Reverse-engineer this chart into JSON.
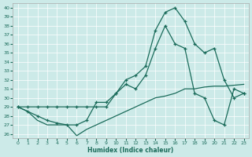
{
  "bg_color": "#cceae8",
  "grid_color": "#b0d8d5",
  "line_color": "#1a6b5a",
  "xlabel": "Humidex (Indice chaleur)",
  "xlim": [
    -0.5,
    23.5
  ],
  "ylim": [
    25.5,
    40.5
  ],
  "yticks": [
    26,
    27,
    28,
    29,
    30,
    31,
    32,
    33,
    34,
    35,
    36,
    37,
    38,
    39,
    40
  ],
  "xticks": [
    0,
    1,
    2,
    3,
    4,
    5,
    6,
    7,
    8,
    9,
    10,
    11,
    12,
    13,
    14,
    15,
    16,
    17,
    18,
    19,
    20,
    21,
    22,
    23
  ],
  "line_peak_x": [
    0,
    1,
    2,
    3,
    4,
    5,
    6,
    7,
    8,
    9,
    10,
    11,
    12,
    13,
    14,
    15,
    16,
    17,
    18,
    19,
    20,
    21,
    22,
    23
  ],
  "line_peak_y": [
    29.0,
    29.0,
    29.0,
    29.0,
    29.0,
    29.0,
    29.0,
    29.0,
    29.0,
    29.0,
    30.5,
    32.0,
    32.5,
    33.5,
    37.5,
    39.5,
    40.0,
    38.5,
    36.0,
    35.0,
    35.5,
    32.0,
    30.0,
    30.5
  ],
  "line_mid_x": [
    0,
    1,
    2,
    3,
    4,
    5,
    6,
    7,
    8,
    9,
    10,
    11,
    12,
    13,
    14,
    15,
    16,
    17,
    18,
    19,
    20,
    21,
    22,
    23
  ],
  "line_mid_y": [
    29.0,
    28.5,
    28.0,
    27.5,
    27.2,
    27.0,
    27.0,
    27.5,
    29.5,
    29.5,
    30.5,
    31.5,
    31.0,
    32.5,
    35.5,
    38.0,
    36.0,
    35.5,
    30.5,
    30.0,
    27.5,
    27.0,
    31.0,
    30.5
  ],
  "line_low_x": [
    0,
    1,
    2,
    3,
    4,
    5,
    6,
    7,
    8,
    9,
    10,
    11,
    12,
    13,
    14,
    15,
    16,
    17,
    18,
    19,
    20,
    21,
    22,
    23
  ],
  "line_low_y": [
    29.0,
    28.5,
    27.5,
    27.0,
    27.0,
    27.0,
    25.8,
    26.5,
    27.0,
    27.5,
    28.0,
    28.5,
    29.0,
    29.5,
    30.0,
    30.2,
    30.5,
    31.0,
    31.0,
    31.2,
    31.3,
    31.3,
    31.4,
    31.5
  ]
}
